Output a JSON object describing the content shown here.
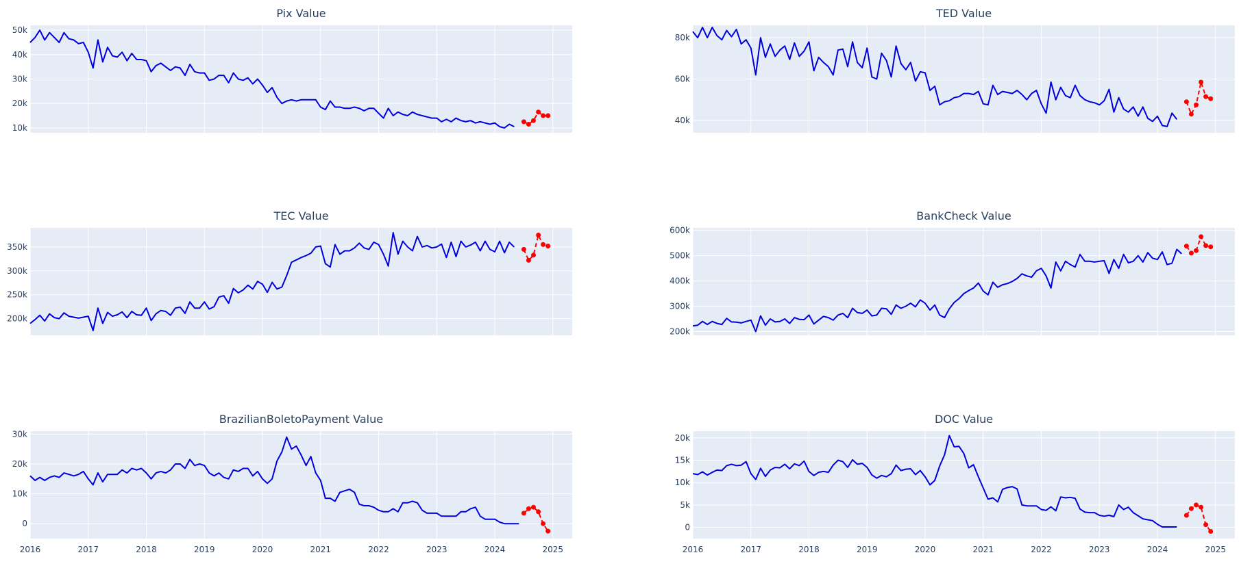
{
  "chart_data": [
    {
      "type": "line",
      "title": "Pix Value",
      "ylim": [
        8000,
        52000
      ],
      "y_ticks": [
        10000,
        20000,
        30000,
        40000,
        50000
      ],
      "y_tick_labels": [
        "10k",
        "20k",
        "30k",
        "40k",
        "50k"
      ],
      "series": [
        {
          "kind": "history",
          "color": "#0000dd",
          "x_start": "2016-01",
          "values": [
            45000,
            47000,
            50000,
            46000,
            49000,
            47000,
            45000,
            49000,
            46500,
            46000,
            44500,
            45000,
            41000,
            34500,
            46000,
            37000,
            43000,
            39500,
            39000,
            41000,
            37500,
            40500,
            38000,
            38000,
            37500,
            33000,
            35500,
            36500,
            35000,
            33500,
            35000,
            34500,
            31500,
            36000,
            33000,
            32500,
            32500,
            29500,
            30000,
            31500,
            31500,
            28500,
            32500,
            30000,
            29500,
            30500,
            28000,
            30000,
            27500,
            24500,
            26500,
            22500,
            20000,
            21000,
            21500,
            21000,
            21500,
            21500,
            21500,
            21500,
            18500,
            17500,
            21000,
            18500,
            18500,
            18000,
            18000,
            18500,
            18000,
            17000,
            18000,
            18000,
            16000,
            14000,
            18000,
            15000,
            16500,
            15500,
            15000,
            16500,
            15500,
            15000,
            14500,
            14000,
            14000,
            12500,
            13500,
            12500,
            14000,
            13000,
            12500,
            13000,
            12000,
            12500,
            12000,
            11500,
            12000,
            10500,
            10000,
            11500,
            10500
          ]
        },
        {
          "kind": "forecast",
          "color": "#ff0000",
          "x": [
            "2024-07",
            "2024-08",
            "2024-09",
            "2024-10",
            "2024-11",
            "2024-12"
          ],
          "values": [
            12500,
            11500,
            13000,
            16500,
            15000,
            15000
          ]
        }
      ]
    },
    {
      "type": "line",
      "title": "TED Value",
      "ylim": [
        34000,
        86000
      ],
      "y_ticks": [
        40000,
        60000,
        80000
      ],
      "y_tick_labels": [
        "40k",
        "60k",
        "80k"
      ],
      "series": [
        {
          "kind": "history",
          "color": "#0000dd",
          "x_start": "2016-01",
          "values": [
            83000,
            80000,
            85000,
            80000,
            85000,
            81000,
            79000,
            83500,
            80500,
            84000,
            77000,
            79000,
            75000,
            62000,
            80000,
            70500,
            77000,
            71000,
            74000,
            76000,
            69500,
            77500,
            71000,
            73500,
            78000,
            64000,
            70500,
            68000,
            66000,
            62000,
            74000,
            74500,
            66000,
            78000,
            68000,
            65500,
            75000,
            61000,
            60000,
            72500,
            69000,
            61000,
            76000,
            67500,
            64500,
            68000,
            59000,
            63500,
            63000,
            54500,
            56500,
            47500,
            49000,
            49500,
            51000,
            51500,
            53000,
            53000,
            52500,
            54000,
            48000,
            47500,
            57000,
            52500,
            54000,
            53500,
            53000,
            54500,
            52500,
            50000,
            53000,
            54500,
            48000,
            43500,
            58500,
            50000,
            56000,
            52000,
            51000,
            57000,
            52000,
            50000,
            49000,
            48500,
            47500,
            49500,
            55000,
            44000,
            51000,
            45500,
            44000,
            46500,
            42000,
            46500,
            41000,
            39500,
            42000,
            37500,
            37000,
            43500,
            40500
          ]
        },
        {
          "kind": "forecast",
          "color": "#ff0000",
          "x": [
            "2024-07",
            "2024-08",
            "2024-09",
            "2024-10",
            "2024-11",
            "2024-12"
          ],
          "values": [
            49000,
            43000,
            47500,
            58500,
            51500,
            50500
          ]
        }
      ]
    },
    {
      "type": "line",
      "title": "TEC Value",
      "ylim": [
        165000,
        390000
      ],
      "y_ticks": [
        200000,
        250000,
        300000,
        350000
      ],
      "y_tick_labels": [
        "200k",
        "250k",
        "300k",
        "350k"
      ],
      "series": [
        {
          "kind": "history",
          "color": "#0000dd",
          "x_start": "2016-01",
          "values": [
            190000,
            198000,
            207000,
            195000,
            210000,
            202000,
            200000,
            212000,
            205000,
            203000,
            201000,
            203000,
            205000,
            175000,
            222000,
            190000,
            213000,
            205000,
            208000,
            214000,
            202000,
            215000,
            208000,
            207000,
            222000,
            196000,
            210000,
            217000,
            215000,
            207000,
            222000,
            224000,
            211000,
            235000,
            222000,
            222000,
            235000,
            220000,
            225000,
            245000,
            248000,
            232000,
            263000,
            254000,
            260000,
            270000,
            262000,
            278000,
            272000,
            255000,
            276000,
            262000,
            266000,
            290000,
            318000,
            323000,
            328000,
            332000,
            337000,
            350000,
            352000,
            315000,
            308000,
            355000,
            335000,
            342000,
            342000,
            348000,
            358000,
            348000,
            345000,
            360000,
            355000,
            335000,
            310000,
            380000,
            335000,
            362000,
            350000,
            342000,
            372000,
            350000,
            353000,
            348000,
            350000,
            356000,
            328000,
            360000,
            330000,
            362000,
            350000,
            354000,
            360000,
            342000,
            362000,
            345000,
            340000,
            362000,
            338000,
            360000,
            350000
          ]
        },
        {
          "kind": "forecast",
          "color": "#ff0000",
          "x": [
            "2024-07",
            "2024-08",
            "2024-09",
            "2024-10",
            "2024-11",
            "2024-12"
          ],
          "values": [
            345000,
            322000,
            333000,
            375000,
            355000,
            352000
          ]
        }
      ]
    },
    {
      "type": "line",
      "title": "BankCheck Value",
      "ylim": [
        185000,
        610000
      ],
      "y_ticks": [
        200000,
        300000,
        400000,
        500000,
        600000
      ],
      "y_tick_labels": [
        "200k",
        "300k",
        "400k",
        "500k",
        "600k"
      ],
      "series": [
        {
          "kind": "history",
          "color": "#0000dd",
          "x_start": "2016-01",
          "values": [
            222000,
            225000,
            240000,
            228000,
            240000,
            232000,
            228000,
            252000,
            238000,
            237000,
            234000,
            240000,
            245000,
            200000,
            262000,
            225000,
            250000,
            238000,
            240000,
            250000,
            232000,
            255000,
            248000,
            247000,
            265000,
            230000,
            245000,
            260000,
            255000,
            245000,
            265000,
            272000,
            255000,
            292000,
            275000,
            272000,
            285000,
            262000,
            265000,
            292000,
            290000,
            268000,
            305000,
            292000,
            300000,
            312000,
            298000,
            325000,
            312000,
            285000,
            305000,
            265000,
            255000,
            290000,
            315000,
            330000,
            350000,
            362000,
            372000,
            392000,
            360000,
            345000,
            395000,
            375000,
            385000,
            390000,
            398000,
            410000,
            428000,
            420000,
            415000,
            440000,
            450000,
            420000,
            372000,
            475000,
            440000,
            478000,
            465000,
            455000,
            505000,
            478000,
            478000,
            475000,
            478000,
            480000,
            430000,
            485000,
            450000,
            505000,
            472000,
            478000,
            500000,
            475000,
            512000,
            490000,
            485000,
            515000,
            465000,
            470000,
            525000,
            508000
          ]
        },
        {
          "kind": "forecast",
          "color": "#ff0000",
          "x": [
            "2024-07",
            "2024-08",
            "2024-09",
            "2024-10",
            "2024-11",
            "2024-12"
          ],
          "values": [
            538000,
            510000,
            520000,
            575000,
            540000,
            535000
          ]
        }
      ]
    },
    {
      "type": "line",
      "title": "BrazilianBoletoPayment Value",
      "ylim": [
        -5000,
        31000
      ],
      "y_ticks": [
        0,
        10000,
        20000,
        30000
      ],
      "y_tick_labels": [
        "0",
        "10k",
        "20k",
        "30k"
      ],
      "series": [
        {
          "kind": "history",
          "color": "#0000dd",
          "x_start": "2016-01",
          "values": [
            16000,
            14500,
            15500,
            14500,
            15500,
            16000,
            15500,
            17000,
            16500,
            16000,
            16500,
            17500,
            15000,
            13000,
            17000,
            14000,
            16500,
            16500,
            16500,
            18000,
            17000,
            18500,
            18000,
            18500,
            17000,
            15000,
            17000,
            17500,
            17000,
            18000,
            20000,
            20000,
            18500,
            21500,
            19500,
            20000,
            19500,
            17000,
            16000,
            17000,
            15500,
            15000,
            18000,
            17500,
            18500,
            18500,
            16000,
            17500,
            15000,
            13500,
            15000,
            21000,
            24000,
            29000,
            25000,
            26000,
            23000,
            19500,
            22500,
            17000,
            14500,
            8500,
            8500,
            7500,
            10500,
            11000,
            11500,
            10500,
            6500,
            6000,
            6000,
            5500,
            4500,
            4000,
            4000,
            5000,
            4000,
            7000,
            7000,
            7500,
            7000,
            4500,
            3500,
            3500,
            3500,
            2500,
            2500,
            2500,
            2500,
            4000,
            4000,
            5000,
            5500,
            2500,
            1500,
            1500,
            1500,
            500,
            0,
            0,
            0,
            0
          ]
        },
        {
          "kind": "forecast",
          "color": "#ff0000",
          "x": [
            "2024-07",
            "2024-08",
            "2024-09",
            "2024-10",
            "2024-11",
            "2024-12"
          ],
          "values": [
            3500,
            5000,
            5500,
            4000,
            0,
            -2500
          ]
        }
      ]
    },
    {
      "type": "line",
      "title": "DOC Value",
      "ylim": [
        -2500,
        21500
      ],
      "y_ticks": [
        0,
        5000,
        10000,
        15000,
        20000
      ],
      "y_tick_labels": [
        "0",
        "5k",
        "10k",
        "15k",
        "20k"
      ],
      "series": [
        {
          "kind": "history",
          "color": "#0000dd",
          "x_start": "2016-01",
          "values": [
            12000,
            11800,
            12400,
            11700,
            12300,
            12800,
            12700,
            13800,
            14100,
            13800,
            13900,
            14700,
            12000,
            10700,
            13200,
            11400,
            12800,
            13400,
            13300,
            14100,
            13100,
            14200,
            13800,
            14800,
            12500,
            11600,
            12300,
            12500,
            12300,
            13900,
            15000,
            14700,
            13400,
            15100,
            14100,
            14300,
            13400,
            11700,
            11000,
            11600,
            11300,
            12000,
            13900,
            12700,
            13000,
            13100,
            11800,
            12700,
            11300,
            9500,
            10500,
            13700,
            16200,
            20500,
            18000,
            18100,
            16500,
            13300,
            14000,
            11300,
            8800,
            6300,
            6600,
            5700,
            8500,
            8900,
            9100,
            8600,
            5000,
            4800,
            4800,
            4800,
            4000,
            3800,
            4600,
            3700,
            6800,
            6600,
            6700,
            6500,
            4100,
            3400,
            3300,
            3300,
            2700,
            2500,
            2700,
            2400,
            5000,
            4000,
            4500,
            3300,
            2600,
            1900,
            1700,
            1500,
            700,
            100,
            100,
            100,
            100
          ]
        },
        {
          "kind": "forecast",
          "color": "#ff0000",
          "x": [
            "2024-07",
            "2024-08",
            "2024-09",
            "2024-10",
            "2024-11",
            "2024-12"
          ],
          "values": [
            2700,
            4200,
            5000,
            4500,
            600,
            -900
          ]
        }
      ]
    }
  ],
  "x_axis": {
    "range": [
      "2016-01",
      "2025-05"
    ],
    "ticks": [
      "2016",
      "2017",
      "2018",
      "2019",
      "2020",
      "2021",
      "2022",
      "2023",
      "2024",
      "2025"
    ],
    "show_labels_on": [
      "BrazilianBoletoPayment Value",
      "DOC Value"
    ]
  }
}
